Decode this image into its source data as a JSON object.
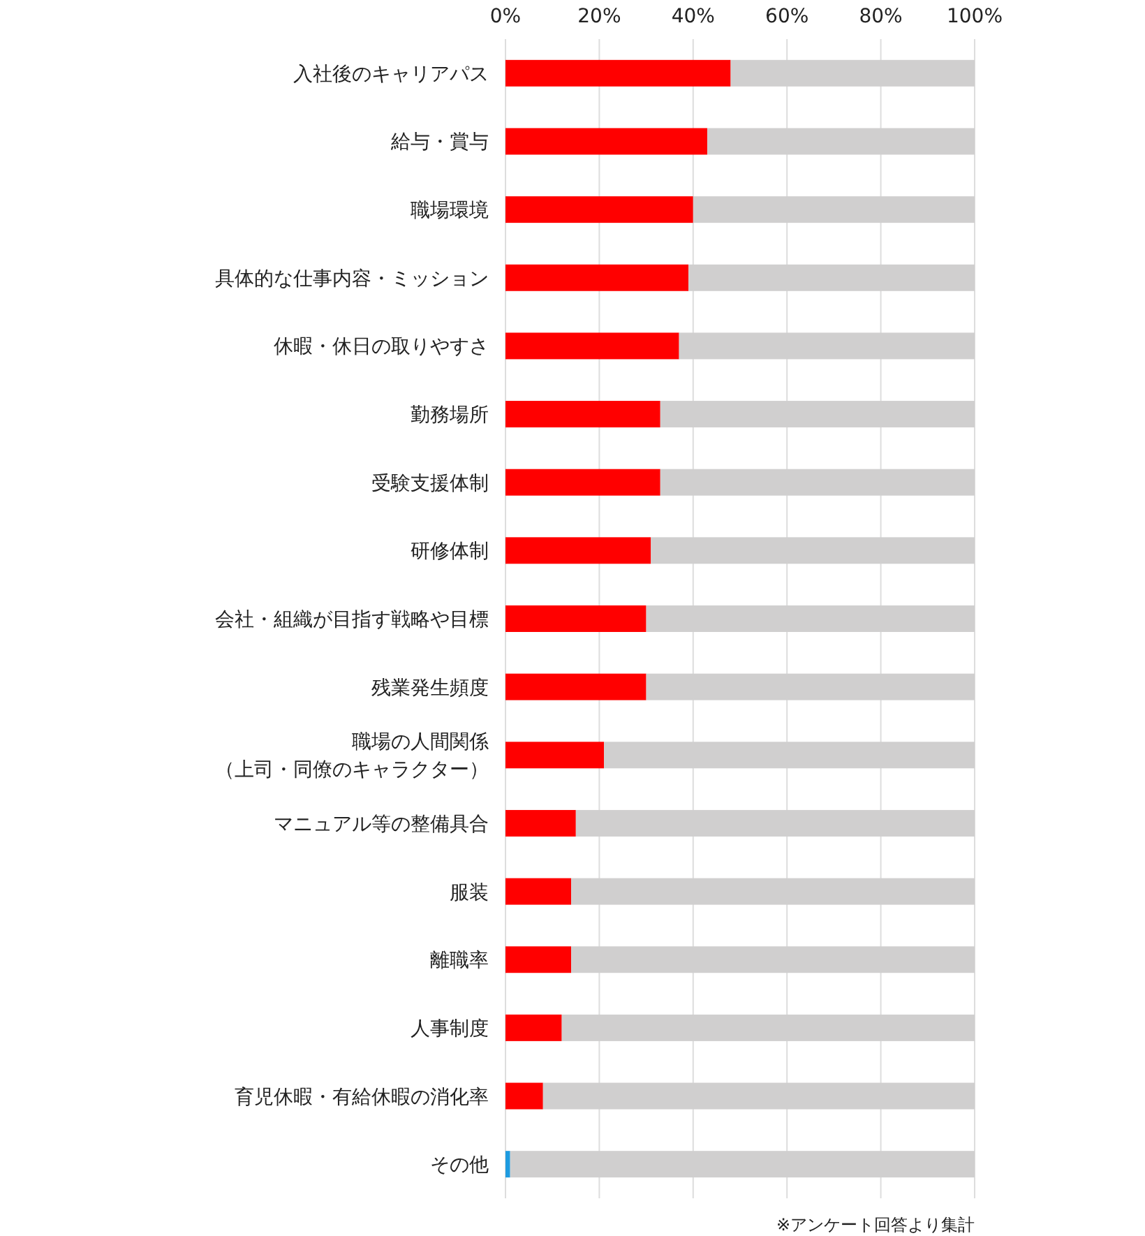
{
  "chart_data": {
    "type": "bar",
    "orientation": "horizontal",
    "stacked": true,
    "categories": [
      "入社後のキャリアパス",
      "給与・賞与",
      "職場環境",
      "具体的な仕事内容・ミッション",
      "休暇・休日の取りやすさ",
      "勤務場所",
      "受験支援体制",
      "研修体制",
      "会社・組織が目指す戦略や目標",
      "残業発生頻度",
      "職場の人間関係（上司・同僚のキャラクター）",
      "マニュアル等の整備具合",
      "服装",
      "離職率",
      "人事制度",
      "育児休暇・有給休暇の消化率",
      "その他"
    ],
    "series": [
      {
        "colors": [
          "#ff0000",
          "#ff0000",
          "#ff0000",
          "#ff0000",
          "#ff0000",
          "#ff0000",
          "#ff0000",
          "#ff0000",
          "#ff0000",
          "#ff0000",
          "#ff0000",
          "#ff0000",
          "#ff0000",
          "#ff0000",
          "#ff0000",
          "#ff0000",
          "#1e9be0"
        ],
        "values": [
          48,
          43,
          40,
          39,
          37,
          33,
          33,
          31,
          30,
          30,
          21,
          15,
          14,
          14,
          12,
          8,
          1
        ]
      },
      {
        "color": "#d0cfcf",
        "values": [
          52,
          57,
          60,
          61,
          63,
          67,
          67,
          69,
          70,
          70,
          79,
          85,
          86,
          86,
          88,
          92,
          99
        ]
      }
    ],
    "xlim": [
      0,
      100
    ],
    "xticks": [
      {
        "value": 0,
        "label": "0%"
      },
      {
        "value": 20,
        "label": "20%"
      },
      {
        "value": 40,
        "label": "40%"
      },
      {
        "value": 60,
        "label": "60%"
      },
      {
        "value": 80,
        "label": "80%"
      },
      {
        "value": 100,
        "label": "100%"
      }
    ],
    "grid": "x",
    "annotations": [
      "※アンケート回答より集計"
    ]
  }
}
